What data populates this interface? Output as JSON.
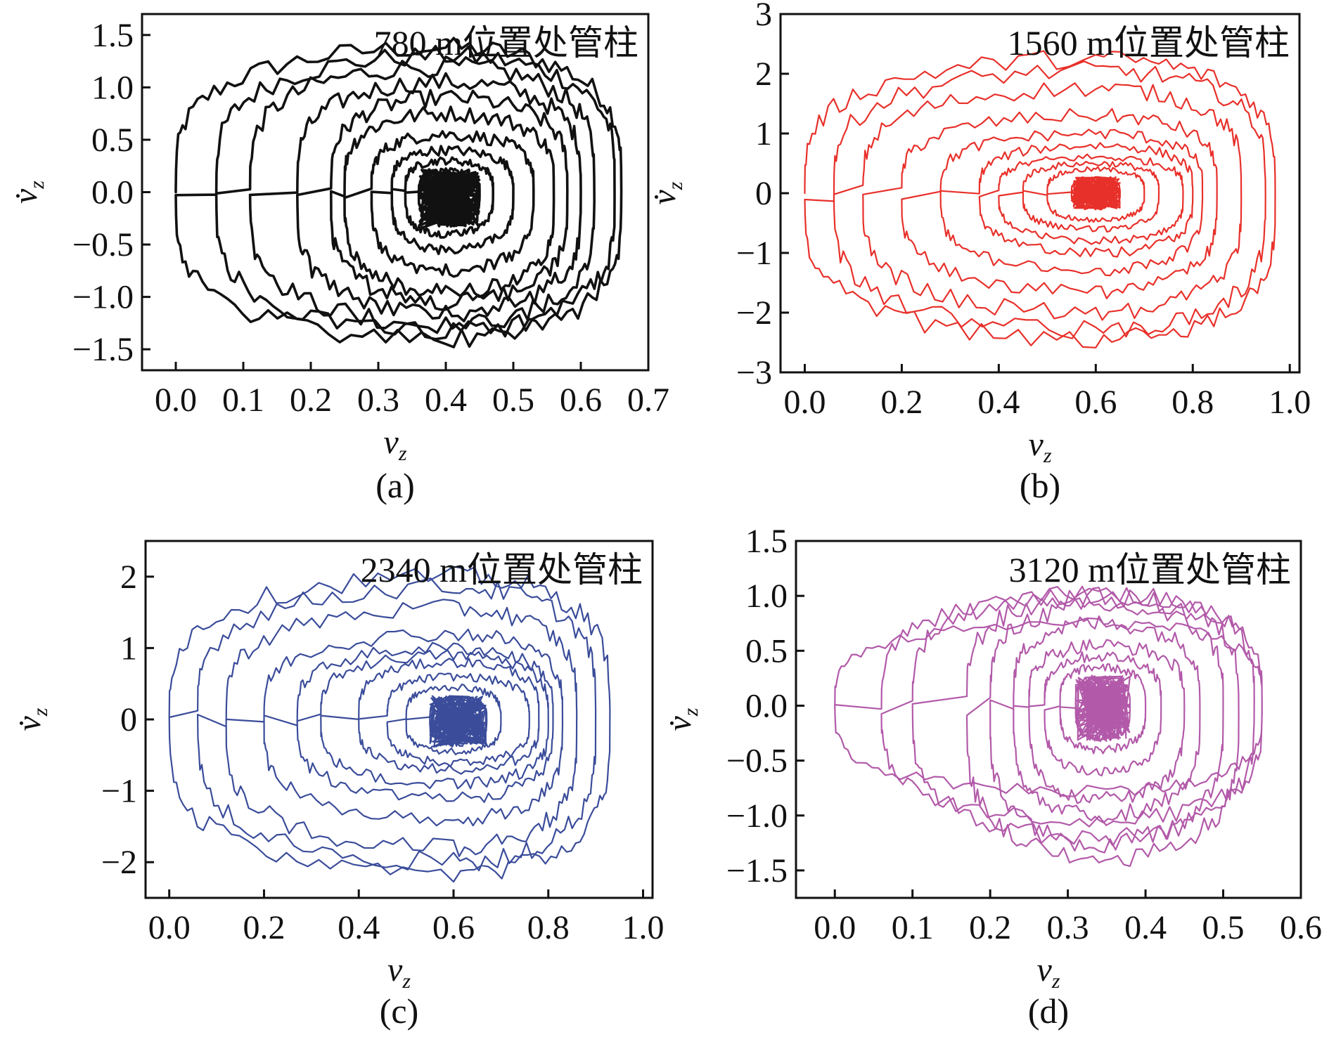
{
  "chart_data": [
    {
      "type": "line",
      "panel": "a",
      "caption": "(a)",
      "title": "780 m位置处管柱",
      "xlabel": "v",
      "xlabel_subscript": "z",
      "ylabel": "v̇",
      "ylabel_subscript": "z",
      "color": "#111111",
      "xlim": [
        -0.05,
        0.7
      ],
      "ylim": [
        -1.7,
        1.7
      ],
      "xticks": [
        0.0,
        0.1,
        0.2,
        0.3,
        0.4,
        0.5,
        0.6,
        0.7
      ],
      "xtick_labels": [
        "0.0",
        "0.1",
        "0.2",
        "0.3",
        "0.4",
        "0.5",
        "0.6",
        "0.7"
      ],
      "yticks": [
        1.5,
        1.0,
        0.5,
        0.0,
        -0.5,
        -1.0,
        -1.5
      ],
      "ytick_labels": [
        "1.5",
        "1.0",
        "0.5",
        "0.0",
        "−0.5",
        "−1.0",
        "−1.5"
      ],
      "series": [
        {
          "start": [
            0.0,
            0.0
          ],
          "center": [
            0.4,
            0.0
          ],
          "loops": [
            {
              "xmin": 0.0,
              "xmax": 0.66,
              "vmax": 1.38,
              "vmin": -1.4
            },
            {
              "xmin": 0.06,
              "xmax": 0.65,
              "vmax": 1.3,
              "vmin": -1.33
            },
            {
              "xmin": 0.11,
              "xmax": 0.62,
              "vmax": 1.2,
              "vmin": -1.25
            },
            {
              "xmin": 0.18,
              "xmax": 0.6,
              "vmax": 1.05,
              "vmin": -1.15
            },
            {
              "xmin": 0.23,
              "xmax": 0.58,
              "vmax": 0.9,
              "vmin": -1.05
            },
            {
              "xmin": 0.25,
              "xmax": 0.56,
              "vmax": 0.75,
              "vmin": -0.95
            },
            {
              "xmin": 0.29,
              "xmax": 0.53,
              "vmax": 0.55,
              "vmin": -0.75
            },
            {
              "xmin": 0.32,
              "xmax": 0.5,
              "vmax": 0.4,
              "vmin": -0.55
            },
            {
              "xmin": 0.34,
              "xmax": 0.47,
              "vmax": 0.3,
              "vmin": -0.4
            },
            {
              "xmin": 0.36,
              "xmax": 0.45,
              "vmax": 0.2,
              "vmin": -0.3
            }
          ]
        }
      ]
    },
    {
      "type": "line",
      "panel": "b",
      "caption": "(b)",
      "title": "1560 m位置处管柱",
      "xlabel": "v",
      "xlabel_subscript": "z",
      "ylabel": "v̇",
      "ylabel_subscript": "z",
      "color": "#e8302a",
      "xlim": [
        -0.05,
        1.02
      ],
      "ylim": [
        -3,
        3
      ],
      "xticks": [
        0.0,
        0.2,
        0.4,
        0.6,
        0.8,
        1.0
      ],
      "xtick_labels": [
        "0.0",
        "0.2",
        "0.4",
        "0.6",
        "0.8",
        "1.0"
      ],
      "yticks": [
        3,
        2,
        1,
        0,
        -1,
        -2,
        -3
      ],
      "ytick_labels": [
        "3",
        "2",
        "1",
        "0",
        "−1",
        "−2",
        "−3"
      ],
      "series": [
        {
          "start": [
            0.0,
            0.0
          ],
          "center": [
            0.6,
            0.0
          ],
          "loops": [
            {
              "xmin": 0.0,
              "xmax": 0.97,
              "vmax": 2.25,
              "vmin": -2.45
            },
            {
              "xmin": 0.06,
              "xmax": 0.95,
              "vmax": 2.05,
              "vmin": -2.3
            },
            {
              "xmin": 0.12,
              "xmax": 0.9,
              "vmax": 1.75,
              "vmin": -2.0
            },
            {
              "xmin": 0.2,
              "xmax": 0.85,
              "vmax": 1.3,
              "vmin": -1.65
            },
            {
              "xmin": 0.28,
              "xmax": 0.82,
              "vmax": 1.0,
              "vmin": -1.3
            },
            {
              "xmin": 0.36,
              "xmax": 0.8,
              "vmax": 0.8,
              "vmin": -1.0
            },
            {
              "xmin": 0.4,
              "xmax": 0.78,
              "vmax": 0.6,
              "vmin": -0.8
            },
            {
              "xmin": 0.45,
              "xmax": 0.73,
              "vmax": 0.5,
              "vmin": -0.6
            },
            {
              "xmin": 0.5,
              "xmax": 0.7,
              "vmax": 0.4,
              "vmin": -0.45
            },
            {
              "xmin": 0.55,
              "xmax": 0.65,
              "vmax": 0.25,
              "vmin": -0.25
            }
          ]
        }
      ]
    },
    {
      "type": "line",
      "panel": "c",
      "caption": "(c)",
      "title": "2340 m位置处管柱",
      "xlabel": "v",
      "xlabel_subscript": "z",
      "ylabel": "v̇",
      "ylabel_subscript": "z",
      "color": "#3a4c9a",
      "xlim": [
        -0.05,
        1.02
      ],
      "ylim": [
        -2.5,
        2.5
      ],
      "xticks": [
        0.0,
        0.2,
        0.4,
        0.6,
        0.8,
        1.0
      ],
      "xtick_labels": [
        "0.0",
        "0.2",
        "0.4",
        "0.6",
        "0.8",
        "1.0"
      ],
      "yticks": [
        2,
        1,
        0,
        -1,
        -2
      ],
      "ytick_labels": [
        "2",
        "1",
        "0",
        "−1",
        "−2"
      ],
      "series": [
        {
          "start": [
            0.0,
            0.0
          ],
          "center": [
            0.6,
            0.0
          ],
          "loops": [
            {
              "xmin": 0.0,
              "xmax": 0.93,
              "vmax": 2.0,
              "vmin": -2.15
            },
            {
              "xmin": 0.06,
              "xmax": 0.9,
              "vmax": 1.85,
              "vmin": -2.0
            },
            {
              "xmin": 0.12,
              "xmax": 0.86,
              "vmax": 1.55,
              "vmin": -1.8
            },
            {
              "xmin": 0.2,
              "xmax": 0.83,
              "vmax": 1.2,
              "vmin": -1.4
            },
            {
              "xmin": 0.27,
              "xmax": 0.81,
              "vmax": 1.0,
              "vmin": -1.1
            },
            {
              "xmin": 0.32,
              "xmax": 0.8,
              "vmax": 0.9,
              "vmin": -0.9
            },
            {
              "xmin": 0.4,
              "xmax": 0.78,
              "vmax": 0.8,
              "vmin": -0.7
            },
            {
              "xmin": 0.46,
              "xmax": 0.76,
              "vmax": 0.6,
              "vmin": -0.6
            },
            {
              "xmin": 0.5,
              "xmax": 0.7,
              "vmax": 0.45,
              "vmin": -0.45
            },
            {
              "xmin": 0.55,
              "xmax": 0.67,
              "vmax": 0.3,
              "vmin": -0.35
            }
          ]
        }
      ]
    },
    {
      "type": "line",
      "panel": "d",
      "caption": "(d)",
      "title": "3120 m位置处管柱",
      "xlabel": "v",
      "xlabel_subscript": "z",
      "ylabel": "v̇",
      "ylabel_subscript": "z",
      "color": "#b25aa9",
      "xlim": [
        -0.05,
        0.6
      ],
      "ylim": [
        -1.75,
        1.5
      ],
      "xticks": [
        0.0,
        0.1,
        0.2,
        0.3,
        0.4,
        0.5,
        0.6
      ],
      "xtick_labels": [
        "0.0",
        "0.1",
        "0.2",
        "0.3",
        "0.4",
        "0.5",
        "0.6"
      ],
      "yticks": [
        1.5,
        1.0,
        0.5,
        0.0,
        -0.5,
        -1.0,
        -1.5
      ],
      "ytick_labels": [
        "1.5",
        "1.0",
        "0.5",
        "0.0",
        "−0.5",
        "−1.0",
        "−1.5"
      ],
      "series": [
        {
          "start": [
            0.0,
            0.0
          ],
          "center": [
            0.34,
            0.0
          ],
          "loops": [
            {
              "xmin": 0.0,
              "xmax": 0.55,
              "vmax": 0.75,
              "vmin": -0.78
            },
            {
              "xmin": 0.06,
              "xmax": 0.55,
              "vmax": 1.0,
              "vmin": -1.05
            },
            {
              "xmin": 0.1,
              "xmax": 0.54,
              "vmax": 1.02,
              "vmin": -1.2
            },
            {
              "xmin": 0.17,
              "xmax": 0.52,
              "vmax": 0.98,
              "vmin": -1.4
            },
            {
              "xmin": 0.2,
              "xmax": 0.5,
              "vmax": 0.9,
              "vmin": -1.25
            },
            {
              "xmin": 0.23,
              "xmax": 0.47,
              "vmax": 0.75,
              "vmin": -1.0
            },
            {
              "xmin": 0.25,
              "xmax": 0.45,
              "vmax": 0.55,
              "vmin": -0.85
            },
            {
              "xmin": 0.27,
              "xmax": 0.42,
              "vmax": 0.45,
              "vmin": -0.6
            },
            {
              "xmin": 0.29,
              "xmax": 0.4,
              "vmax": 0.35,
              "vmin": -0.4
            },
            {
              "xmin": 0.31,
              "xmax": 0.38,
              "vmax": 0.25,
              "vmin": -0.3
            }
          ]
        }
      ]
    }
  ]
}
